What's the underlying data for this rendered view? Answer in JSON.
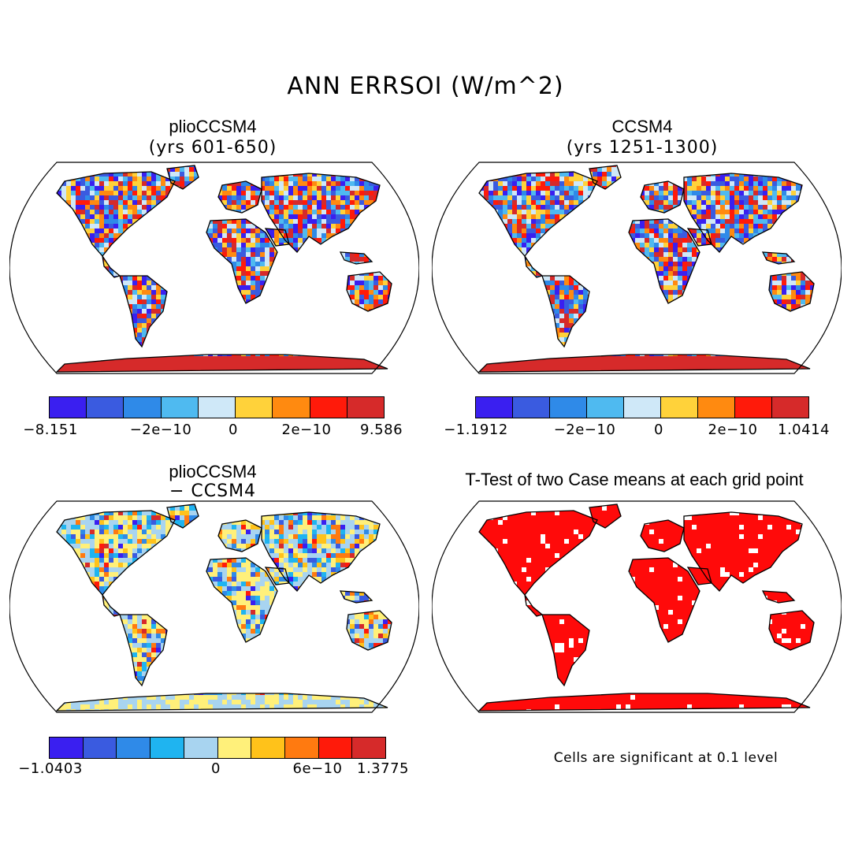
{
  "title": "ANN ERRSOI (W/m^2)",
  "panels": [
    {
      "id": "pliocene",
      "title": "plioCCSM4",
      "subtitle": "(yrs 601-650)",
      "colorbar": {
        "colors": [
          "#3a1ff0",
          "#3a5be0",
          "#2f8ae8",
          "#4fbaf0",
          "#cfe8f8",
          "#ffd23a",
          "#ff8a10",
          "#ff1a0a",
          "#d62a2a"
        ],
        "labels": [
          "−8.151",
          "−2e−10",
          "0",
          "2e−10",
          "9.586"
        ]
      }
    },
    {
      "id": "control",
      "title": "CCSM4",
      "subtitle": "(yrs 1251-1300)",
      "colorbar": {
        "colors": [
          "#3a1ff0",
          "#3a5be0",
          "#2f8ae8",
          "#4fbaf0",
          "#cfe8f8",
          "#ffd23a",
          "#ff8a10",
          "#ff1a0a",
          "#d62a2a"
        ],
        "labels": [
          "−1.1912",
          "−2e−10",
          "0",
          "2e−10",
          "1.0414"
        ]
      }
    },
    {
      "id": "difference",
      "title": "plioCCSM4",
      "subtitle": "− CCSM4",
      "colorbar": {
        "colors": [
          "#3a1ff0",
          "#3a5be0",
          "#2f8ae8",
          "#1fb4f0",
          "#a8d4f0",
          "#fff07a",
          "#ffc21a",
          "#ff7a10",
          "#ff1a0a",
          "#d62a2a"
        ],
        "labels": [
          "−1.0403",
          "0",
          "6e−10",
          "1.3775"
        ]
      }
    },
    {
      "id": "ttest",
      "title": "T-Test of two Case means at each grid point",
      "footnote": "Cells are significant at 0.1 level",
      "sig_color": "#ff0a0a"
    }
  ]
}
